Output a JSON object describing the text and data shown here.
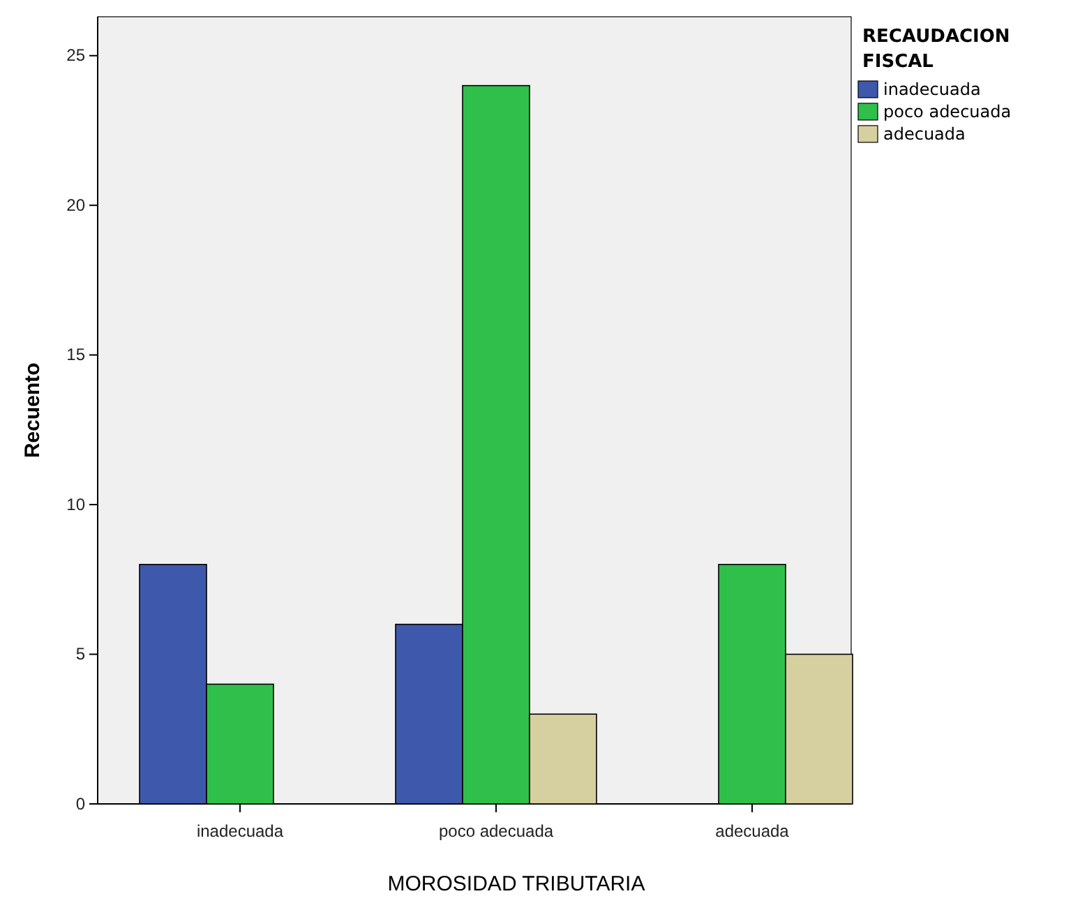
{
  "chart_data": {
    "type": "bar",
    "xlabel": "MOROSIDAD TRIBUTARIA",
    "ylabel": "Recuento",
    "legend_title": "RECAUDACION FISCAL",
    "legend": "right",
    "grid": false,
    "categories": [
      "inadecuada",
      "poco adecuada",
      "adecuada"
    ],
    "series": [
      {
        "name": "inadecuada",
        "color": "#3e58ac",
        "values": [
          8,
          6,
          null
        ]
      },
      {
        "name": "poco adecuada",
        "color": "#2fbf4a",
        "values": [
          4,
          24,
          8
        ]
      },
      {
        "name": "adecuada",
        "color": "#d6cfa0",
        "values": [
          null,
          3,
          5
        ]
      }
    ],
    "ylim": [
      0,
      26.3
    ],
    "yticks": [
      0,
      5,
      10,
      15,
      20,
      25
    ]
  }
}
